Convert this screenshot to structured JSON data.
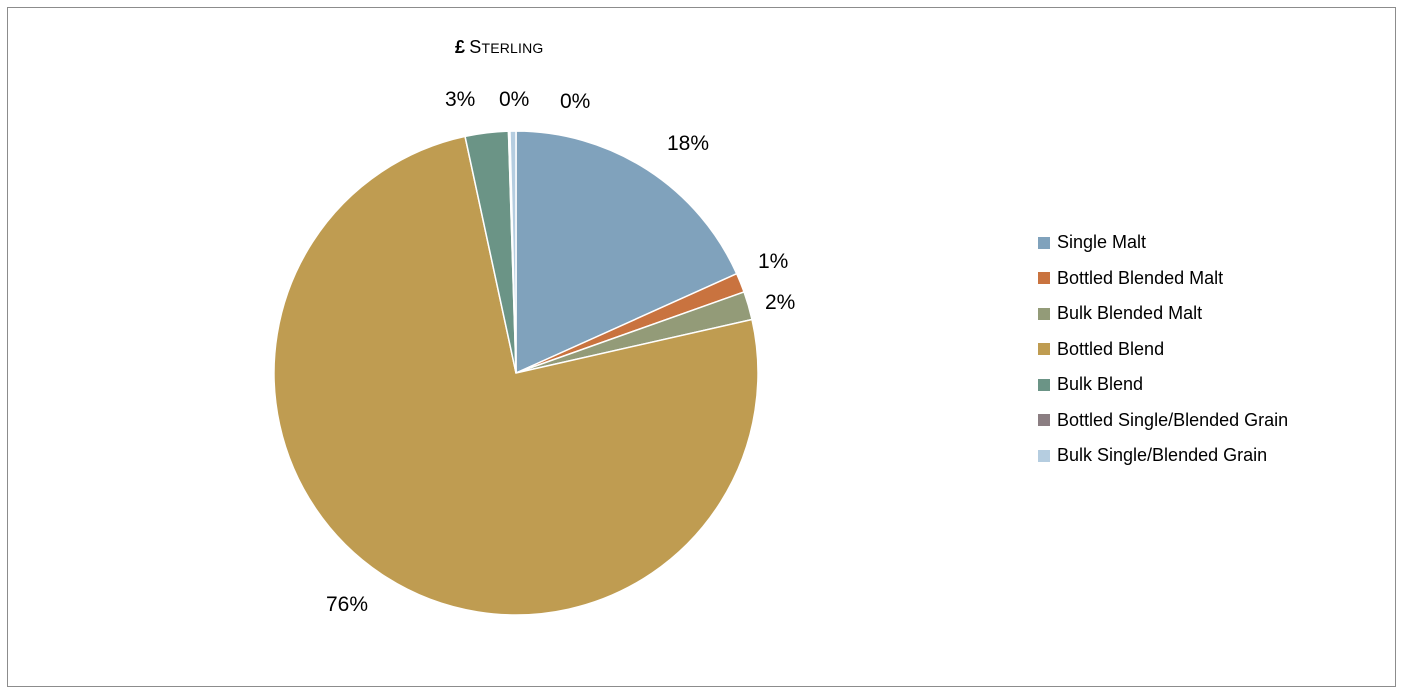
{
  "chart_data": {
    "type": "pie",
    "title": "£ STERLING",
    "categories": [
      "Single Malt",
      "Bottled Blended Malt",
      "Bulk Blended Malt",
      "Bottled Blend",
      "Bulk Blend",
      "Bottled Single/Blended Grain",
      "Bulk Single/Blended Grain"
    ],
    "values": [
      18.4,
      1.3,
      1.9,
      75.7,
      2.9,
      0.1,
      0.4
    ],
    "data_labels": [
      "18%",
      "1%",
      "2%",
      "76%",
      "3%",
      "0%",
      "0%"
    ],
    "colors": [
      "#80a2bc",
      "#c9733f",
      "#939b78",
      "#bf9c51",
      "#6b9486",
      "#8b7e82",
      "#b5cde0"
    ],
    "legend_position": "right"
  },
  "title_parts": {
    "symbol": "£",
    "first": "S",
    "rest": "TERLING"
  }
}
